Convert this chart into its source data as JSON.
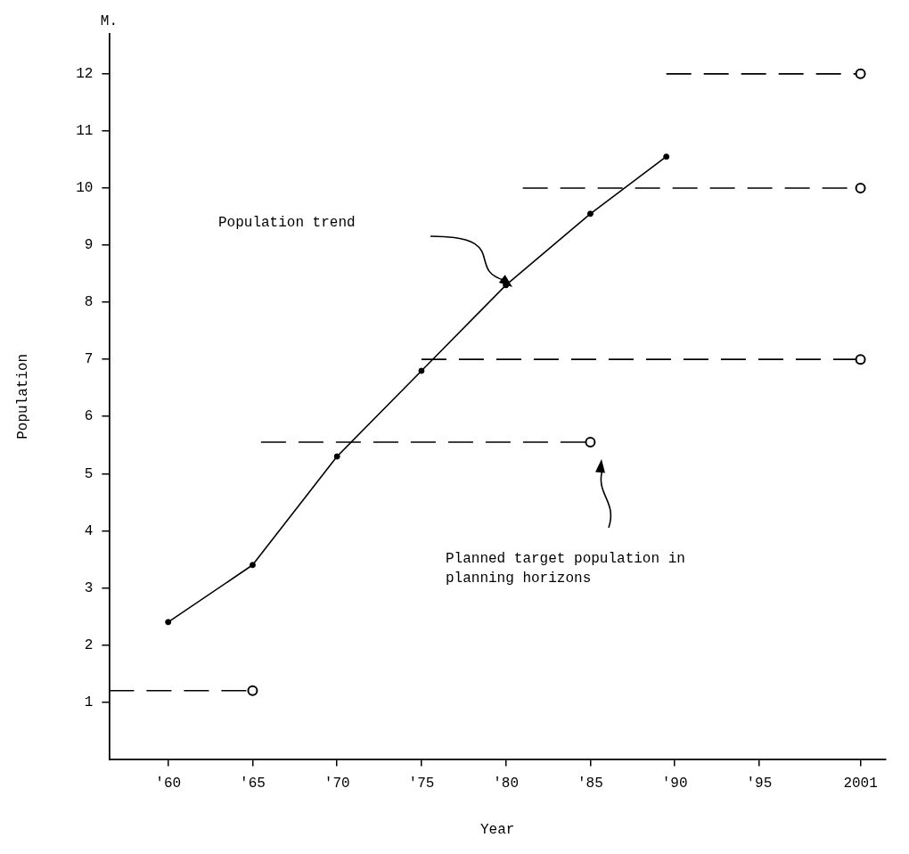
{
  "chart_data": {
    "type": "line",
    "xlabel": "Year",
    "ylabel": "Population",
    "xlim": [
      1956.5,
      2002.5
    ],
    "ylim": [
      0,
      12.7
    ],
    "xticks": [
      {
        "value": 1960,
        "label": "'60"
      },
      {
        "value": 1965,
        "label": "'65"
      },
      {
        "value": 1970,
        "label": "'70"
      },
      {
        "value": 1975,
        "label": "'75"
      },
      {
        "value": 1980,
        "label": "'80"
      },
      {
        "value": 1985,
        "label": "'85"
      },
      {
        "value": 1990,
        "label": "'90"
      },
      {
        "value": 1995,
        "label": "'95"
      },
      {
        "value": 2001,
        "label": "2001"
      }
    ],
    "yticks": [
      1,
      2,
      3,
      4,
      5,
      6,
      7,
      8,
      9,
      10,
      11,
      12
    ],
    "legend": false,
    "series": [
      {
        "color": "#000000",
        "marker": "circle",
        "line_style": "solid",
        "x": [
          1960,
          1965,
          1970,
          1975,
          1980,
          1985,
          1989.5
        ],
        "values": [
          2.4,
          3.4,
          5.3,
          6.8,
          8.3,
          9.55,
          10.55
        ]
      },
      {
        "color": "#000000",
        "marker": "circle",
        "line_style": "dashed",
        "x": [
          1956.5,
          1965
        ],
        "values": [
          1.2,
          1.2
        ]
      },
      {
        "color": "#000000",
        "marker": "circle",
        "line_style": "dashed",
        "x": [
          1965.5,
          1985
        ],
        "values": [
          5.55,
          5.55
        ]
      },
      {
        "color": "#000000",
        "marker": "circle",
        "line_style": "dashed",
        "x": [
          1975,
          2001
        ],
        "values": [
          7,
          7
        ]
      },
      {
        "color": "#000000",
        "marker": "circle",
        "line_style": "dashed",
        "x": [
          1981,
          2001
        ],
        "values": [
          10,
          10
        ]
      },
      {
        "color": "#000000",
        "marker": "circle",
        "line_style": "dashed",
        "x": [
          1989.5,
          2001
        ],
        "values": [
          12,
          12
        ]
      }
    ],
    "annotations": [
      "M.",
      "Population trend",
      "Planned target population in planning horizons"
    ]
  }
}
